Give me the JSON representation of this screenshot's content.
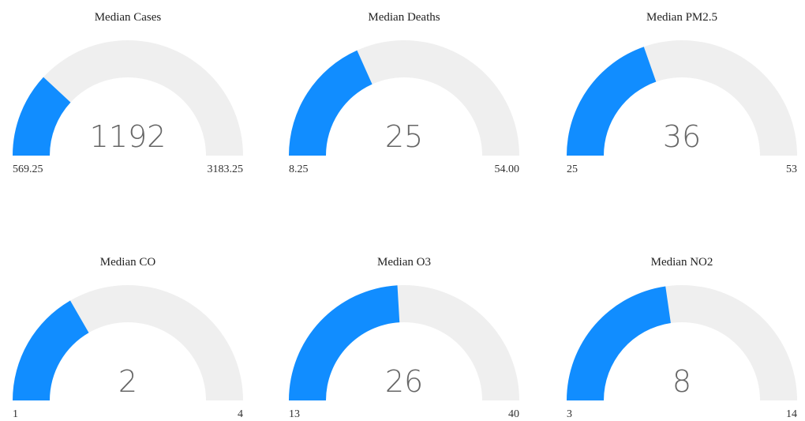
{
  "chart_data": [
    {
      "type": "gauge",
      "title": "Median Cases",
      "value": 1192,
      "min": 569.25,
      "max": 3183.25,
      "color": "#118dff",
      "track_color": "#efefef"
    },
    {
      "type": "gauge",
      "title": "Median Deaths",
      "value": 25,
      "min": 8.25,
      "max": {
        "value": 54,
        "label": "54.00"
      },
      "color": "#118dff",
      "track_color": "#efefef"
    },
    {
      "type": "gauge",
      "title": "Median PM2.5",
      "value": 36,
      "min": 25,
      "max": 53,
      "color": "#118dff",
      "track_color": "#efefef"
    },
    {
      "type": "gauge",
      "title": "Median CO",
      "value": 2,
      "min": 1,
      "max": 4,
      "color": "#118dff",
      "track_color": "#efefef"
    },
    {
      "type": "gauge",
      "title": "Median O3",
      "value": 26,
      "min": 13,
      "max": 40,
      "color": "#118dff",
      "track_color": "#efefef"
    },
    {
      "type": "gauge",
      "title": "Median NO2",
      "value": 8,
      "min": 3,
      "max": 14,
      "color": "#118dff",
      "track_color": "#efefef"
    }
  ]
}
